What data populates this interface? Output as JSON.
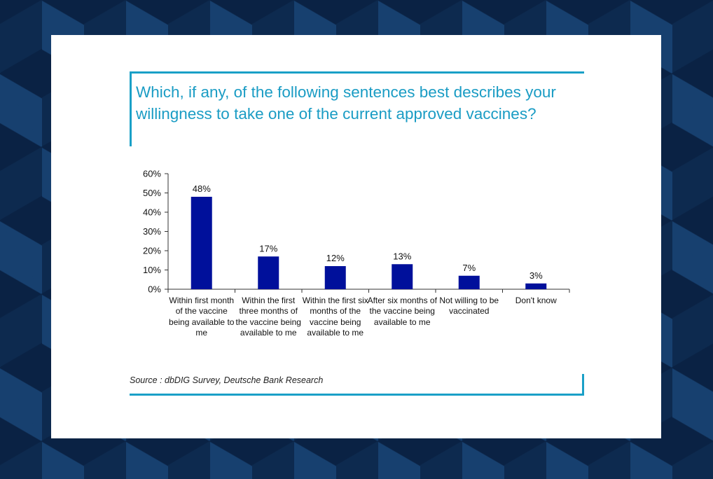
{
  "chart_data": {
    "type": "bar",
    "title": "Which, if any, of the following sentences best describes your willingness to take one of the current approved vaccines?",
    "categories": [
      "Within first month of the vaccine being available to me",
      "Within the first three months of the vaccine being available to me",
      "Within the first six months of the vaccine being available to me",
      "After six months of the vaccine being available to me",
      "Not willing to be vaccinated",
      "Don't know"
    ],
    "values": [
      48,
      17,
      12,
      13,
      7,
      3
    ],
    "data_labels": [
      "48%",
      "17%",
      "12%",
      "13%",
      "7%",
      "3%"
    ],
    "ylim": [
      0,
      60
    ],
    "yticks": [
      0,
      10,
      20,
      30,
      40,
      50,
      60
    ],
    "ytick_labels": [
      "0%",
      "10%",
      "20%",
      "30%",
      "40%",
      "50%",
      "60%"
    ],
    "xlabel": "",
    "ylabel": "",
    "grid": false,
    "bar_color": "#00109b",
    "source": "Source : dbDIG Survey, Deutsche Bank Research"
  },
  "colors": {
    "accent": "#1aa0c7",
    "bar": "#00109b",
    "background": "#0d2a4f"
  }
}
